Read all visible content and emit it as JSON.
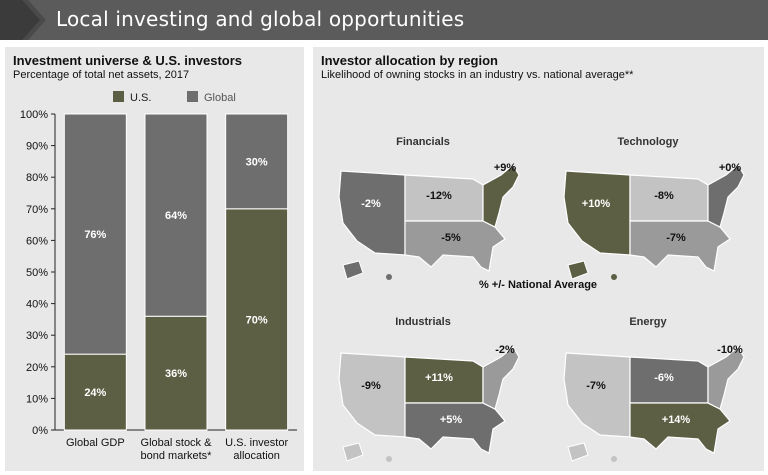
{
  "header": {
    "title": "Local investing and global opportunities"
  },
  "colors": {
    "us": "#5c5f43",
    "global": "#6e6e6e",
    "panel": "#e8e8e8",
    "header": "#5b5b5b"
  },
  "left_panel": {
    "title": "Investment universe & U.S. investors",
    "subtitle": "Percentage of total net assets, 2017"
  },
  "right_panel": {
    "title": "Investor allocation by region",
    "subtitle": "Likelihood of owning stocks in an industry vs. national average**",
    "middle_label": "% +/- National Average"
  },
  "chart_data": [
    {
      "type": "bar",
      "stacked": true,
      "title": "Investment universe & U.S. investors",
      "subtitle": "Percentage of total net assets, 2017",
      "categories": [
        "Global GDP",
        "Global stock & bond markets*",
        "U.S. investor allocation"
      ],
      "category_lines": [
        [
          "Global GDP"
        ],
        [
          "Global stock &",
          "bond markets*"
        ],
        [
          "U.S. investor",
          "allocation"
        ]
      ],
      "series": [
        {
          "name": "U.S.",
          "values": [
            24,
            36,
            70
          ],
          "labels": [
            "24%",
            "36%",
            "70%"
          ]
        },
        {
          "name": "Global",
          "values": [
            76,
            64,
            30
          ],
          "labels": [
            "76%",
            "64%",
            "30%"
          ]
        }
      ],
      "yticks": [
        "0%",
        "10%",
        "20%",
        "30%",
        "40%",
        "50%",
        "60%",
        "70%",
        "80%",
        "90%",
        "100%"
      ],
      "ylim": [
        0,
        100
      ],
      "legend_position": "top",
      "grid": false
    },
    {
      "type": "map",
      "title": "Investor allocation by region",
      "maps": [
        {
          "name": "Financials",
          "regions": {
            "West": "-2%",
            "Midwest": "-12%",
            "South": "-5%",
            "Northeast": "+9%"
          }
        },
        {
          "name": "Technology",
          "regions": {
            "West": "+10%",
            "Midwest": "-8%",
            "South": "-7%",
            "Northeast": "+0%"
          }
        },
        {
          "name": "Industrials",
          "regions": {
            "West": "-9%",
            "Midwest": "+11%",
            "South": "+5%",
            "Northeast": "-2%"
          }
        },
        {
          "name": "Energy",
          "regions": {
            "West": "-7%",
            "Midwest": "-6%",
            "South": "+14%",
            "Northeast": "-10%"
          }
        }
      ]
    }
  ]
}
